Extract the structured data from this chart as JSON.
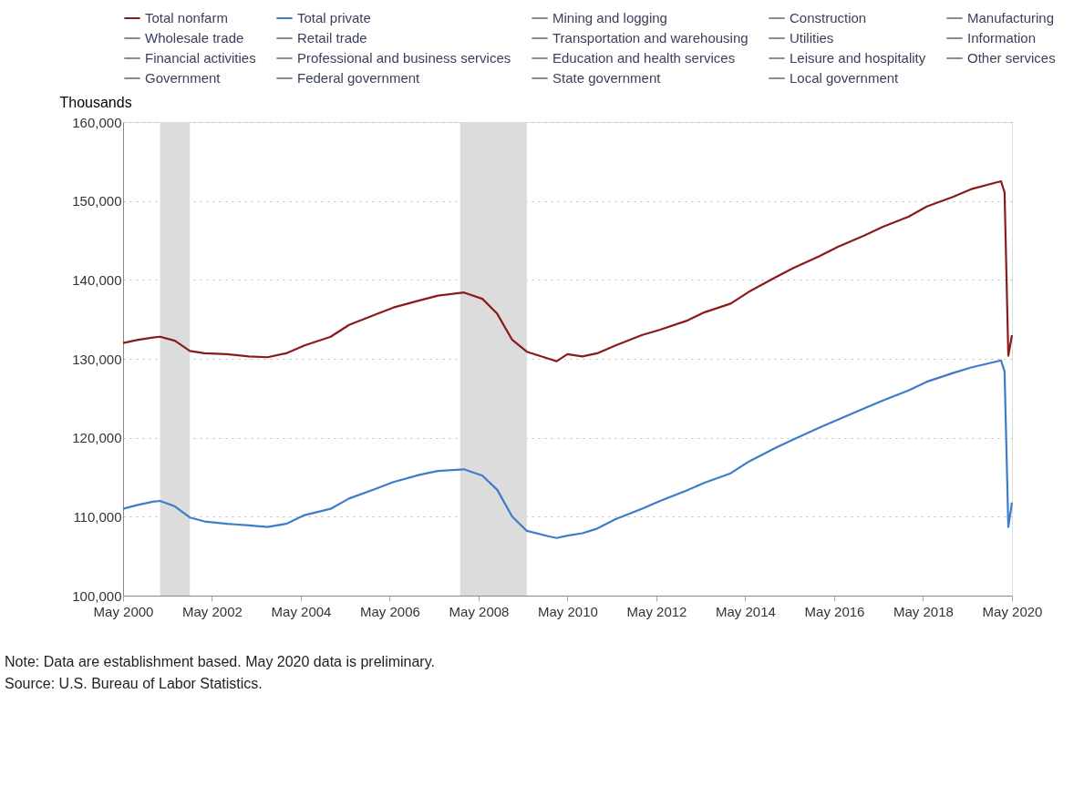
{
  "chart_data": {
    "type": "line",
    "ylabel": "Thousands",
    "x": [
      "2000-05",
      "2000-09",
      "2001-01",
      "2001-03",
      "2001-07",
      "2001-11",
      "2002-03",
      "2002-09",
      "2003-03",
      "2003-08",
      "2004-01",
      "2004-06",
      "2005-01",
      "2005-06",
      "2006-01",
      "2006-06",
      "2007-01",
      "2007-06",
      "2008-01",
      "2008-06",
      "2008-10",
      "2009-02",
      "2009-06",
      "2009-12",
      "2010-02",
      "2010-05",
      "2010-09",
      "2011-01",
      "2011-06",
      "2012-01",
      "2012-06",
      "2013-01",
      "2013-06",
      "2014-01",
      "2014-06",
      "2015-01",
      "2015-06",
      "2016-01",
      "2016-06",
      "2017-01",
      "2017-06",
      "2018-01",
      "2018-06",
      "2019-01",
      "2019-06",
      "2020-02",
      "2020-03",
      "2020-04",
      "2020-05"
    ],
    "series": [
      {
        "name": "Total nonfarm",
        "color": "#8b1a1a",
        "values": [
          132000,
          132400,
          132700,
          132800,
          132300,
          131000,
          130700,
          130600,
          130300,
          130200,
          130700,
          131700,
          132800,
          134300,
          135600,
          136500,
          137400,
          138000,
          138400,
          137600,
          135700,
          132400,
          130900,
          130000,
          129700,
          130600,
          130300,
          130700,
          131700,
          133000,
          133700,
          134800,
          135900,
          137000,
          138500,
          140300,
          141500,
          143000,
          144200,
          145600,
          146700,
          148000,
          149300,
          150500,
          151500,
          152500,
          151100,
          130400,
          133000
        ]
      },
      {
        "name": "Total private",
        "color": "#3d7cc9",
        "values": [
          111000,
          111500,
          111900,
          112000,
          111300,
          109900,
          109400,
          109100,
          108900,
          108700,
          109100,
          110200,
          111000,
          112300,
          113500,
          114400,
          115300,
          115800,
          116000,
          115200,
          113400,
          110000,
          108200,
          107500,
          107300,
          107600,
          107900,
          108500,
          109700,
          111000,
          112000,
          113300,
          114300,
          115500,
          117000,
          118700,
          119800,
          121300,
          122300,
          123700,
          124700,
          126000,
          127100,
          128200,
          128900,
          129800,
          128400,
          108700,
          111800
        ]
      },
      {
        "name": "Mining and logging",
        "color": "#8c8c8c",
        "values": [
          null,
          null,
          null,
          null,
          null,
          null,
          null,
          null,
          null,
          null,
          null,
          null,
          null,
          null,
          null,
          null,
          null,
          null,
          null,
          null,
          null,
          null,
          null,
          null,
          null,
          null,
          null,
          null,
          null,
          null,
          null,
          null,
          null,
          null,
          null,
          null,
          null,
          null,
          null,
          null,
          null,
          null,
          null,
          null,
          null,
          null,
          null,
          null,
          null
        ]
      },
      {
        "name": "Construction",
        "color": "#8c8c8c",
        "values": [
          null,
          null,
          null,
          null,
          null,
          null,
          null,
          null,
          null,
          null,
          null,
          null,
          null,
          null,
          null,
          null,
          null,
          null,
          null,
          null,
          null,
          null,
          null,
          null,
          null,
          null,
          null,
          null,
          null,
          null,
          null,
          null,
          null,
          null,
          null,
          null,
          null,
          null,
          null,
          null,
          null,
          null,
          null,
          null,
          null,
          null,
          null,
          null,
          null
        ]
      },
      {
        "name": "Manufacturing",
        "color": "#8c8c8c",
        "values": [
          null,
          null,
          null,
          null,
          null,
          null,
          null,
          null,
          null,
          null,
          null,
          null,
          null,
          null,
          null,
          null,
          null,
          null,
          null,
          null,
          null,
          null,
          null,
          null,
          null,
          null,
          null,
          null,
          null,
          null,
          null,
          null,
          null,
          null,
          null,
          null,
          null,
          null,
          null,
          null,
          null,
          null,
          null,
          null,
          null,
          null,
          null,
          null,
          null
        ]
      },
      {
        "name": "Wholesale trade",
        "color": "#8c8c8c",
        "values": [
          null,
          null,
          null,
          null,
          null,
          null,
          null,
          null,
          null,
          null,
          null,
          null,
          null,
          null,
          null,
          null,
          null,
          null,
          null,
          null,
          null,
          null,
          null,
          null,
          null,
          null,
          null,
          null,
          null,
          null,
          null,
          null,
          null,
          null,
          null,
          null,
          null,
          null,
          null,
          null,
          null,
          null,
          null,
          null,
          null,
          null,
          null,
          null,
          null
        ]
      },
      {
        "name": "Retail trade",
        "color": "#8c8c8c",
        "values": [
          null,
          null,
          null,
          null,
          null,
          null,
          null,
          null,
          null,
          null,
          null,
          null,
          null,
          null,
          null,
          null,
          null,
          null,
          null,
          null,
          null,
          null,
          null,
          null,
          null,
          null,
          null,
          null,
          null,
          null,
          null,
          null,
          null,
          null,
          null,
          null,
          null,
          null,
          null,
          null,
          null,
          null,
          null,
          null,
          null,
          null,
          null,
          null,
          null
        ]
      },
      {
        "name": "Transportation and warehousing",
        "color": "#8c8c8c",
        "values": [
          null,
          null,
          null,
          null,
          null,
          null,
          null,
          null,
          null,
          null,
          null,
          null,
          null,
          null,
          null,
          null,
          null,
          null,
          null,
          null,
          null,
          null,
          null,
          null,
          null,
          null,
          null,
          null,
          null,
          null,
          null,
          null,
          null,
          null,
          null,
          null,
          null,
          null,
          null,
          null,
          null,
          null,
          null,
          null,
          null,
          null,
          null,
          null,
          null
        ]
      },
      {
        "name": "Utilities",
        "color": "#8c8c8c",
        "values": [
          null,
          null,
          null,
          null,
          null,
          null,
          null,
          null,
          null,
          null,
          null,
          null,
          null,
          null,
          null,
          null,
          null,
          null,
          null,
          null,
          null,
          null,
          null,
          null,
          null,
          null,
          null,
          null,
          null,
          null,
          null,
          null,
          null,
          null,
          null,
          null,
          null,
          null,
          null,
          null,
          null,
          null,
          null,
          null,
          null,
          null,
          null,
          null,
          null
        ]
      },
      {
        "name": "Information",
        "color": "#8c8c8c",
        "values": [
          null,
          null,
          null,
          null,
          null,
          null,
          null,
          null,
          null,
          null,
          null,
          null,
          null,
          null,
          null,
          null,
          null,
          null,
          null,
          null,
          null,
          null,
          null,
          null,
          null,
          null,
          null,
          null,
          null,
          null,
          null,
          null,
          null,
          null,
          null,
          null,
          null,
          null,
          null,
          null,
          null,
          null,
          null,
          null,
          null,
          null,
          null,
          null,
          null
        ]
      },
      {
        "name": "Financial activities",
        "color": "#8c8c8c",
        "values": [
          null,
          null,
          null,
          null,
          null,
          null,
          null,
          null,
          null,
          null,
          null,
          null,
          null,
          null,
          null,
          null,
          null,
          null,
          null,
          null,
          null,
          null,
          null,
          null,
          null,
          null,
          null,
          null,
          null,
          null,
          null,
          null,
          null,
          null,
          null,
          null,
          null,
          null,
          null,
          null,
          null,
          null,
          null,
          null,
          null,
          null,
          null,
          null,
          null
        ]
      },
      {
        "name": "Professional and business services",
        "color": "#8c8c8c",
        "values": [
          null,
          null,
          null,
          null,
          null,
          null,
          null,
          null,
          null,
          null,
          null,
          null,
          null,
          null,
          null,
          null,
          null,
          null,
          null,
          null,
          null,
          null,
          null,
          null,
          null,
          null,
          null,
          null,
          null,
          null,
          null,
          null,
          null,
          null,
          null,
          null,
          null,
          null,
          null,
          null,
          null,
          null,
          null,
          null,
          null,
          null,
          null,
          null,
          null
        ]
      },
      {
        "name": "Education and health services",
        "color": "#8c8c8c",
        "values": [
          null,
          null,
          null,
          null,
          null,
          null,
          null,
          null,
          null,
          null,
          null,
          null,
          null,
          null,
          null,
          null,
          null,
          null,
          null,
          null,
          null,
          null,
          null,
          null,
          null,
          null,
          null,
          null,
          null,
          null,
          null,
          null,
          null,
          null,
          null,
          null,
          null,
          null,
          null,
          null,
          null,
          null,
          null,
          null,
          null,
          null,
          null,
          null,
          null
        ]
      },
      {
        "name": "Leisure and hospitality",
        "color": "#8c8c8c",
        "values": [
          null,
          null,
          null,
          null,
          null,
          null,
          null,
          null,
          null,
          null,
          null,
          null,
          null,
          null,
          null,
          null,
          null,
          null,
          null,
          null,
          null,
          null,
          null,
          null,
          null,
          null,
          null,
          null,
          null,
          null,
          null,
          null,
          null,
          null,
          null,
          null,
          null,
          null,
          null,
          null,
          null,
          null,
          null,
          null,
          null,
          null,
          null,
          null,
          null
        ]
      },
      {
        "name": "Other services",
        "color": "#8c8c8c",
        "values": [
          null,
          null,
          null,
          null,
          null,
          null,
          null,
          null,
          null,
          null,
          null,
          null,
          null,
          null,
          null,
          null,
          null,
          null,
          null,
          null,
          null,
          null,
          null,
          null,
          null,
          null,
          null,
          null,
          null,
          null,
          null,
          null,
          null,
          null,
          null,
          null,
          null,
          null,
          null,
          null,
          null,
          null,
          null,
          null,
          null,
          null,
          null,
          null,
          null
        ]
      },
      {
        "name": "Government",
        "color": "#8c8c8c",
        "values": [
          null,
          null,
          null,
          null,
          null,
          null,
          null,
          null,
          null,
          null,
          null,
          null,
          null,
          null,
          null,
          null,
          null,
          null,
          null,
          null,
          null,
          null,
          null,
          null,
          null,
          null,
          null,
          null,
          null,
          null,
          null,
          null,
          null,
          null,
          null,
          null,
          null,
          null,
          null,
          null,
          null,
          null,
          null,
          null,
          null,
          null,
          null,
          null,
          null
        ]
      },
      {
        "name": "Federal government",
        "color": "#8c8c8c",
        "values": [
          null,
          null,
          null,
          null,
          null,
          null,
          null,
          null,
          null,
          null,
          null,
          null,
          null,
          null,
          null,
          null,
          null,
          null,
          null,
          null,
          null,
          null,
          null,
          null,
          null,
          null,
          null,
          null,
          null,
          null,
          null,
          null,
          null,
          null,
          null,
          null,
          null,
          null,
          null,
          null,
          null,
          null,
          null,
          null,
          null,
          null,
          null,
          null,
          null
        ]
      },
      {
        "name": "State government",
        "color": "#8c8c8c",
        "values": [
          null,
          null,
          null,
          null,
          null,
          null,
          null,
          null,
          null,
          null,
          null,
          null,
          null,
          null,
          null,
          null,
          null,
          null,
          null,
          null,
          null,
          null,
          null,
          null,
          null,
          null,
          null,
          null,
          null,
          null,
          null,
          null,
          null,
          null,
          null,
          null,
          null,
          null,
          null,
          null,
          null,
          null,
          null,
          null,
          null,
          null,
          null,
          null,
          null
        ]
      },
      {
        "name": "Local government",
        "color": "#8c8c8c",
        "values": [
          null,
          null,
          null,
          null,
          null,
          null,
          null,
          null,
          null,
          null,
          null,
          null,
          null,
          null,
          null,
          null,
          null,
          null,
          null,
          null,
          null,
          null,
          null,
          null,
          null,
          null,
          null,
          null,
          null,
          null,
          null,
          null,
          null,
          null,
          null,
          null,
          null,
          null,
          null,
          null,
          null,
          null,
          null,
          null,
          null,
          null,
          null,
          null,
          null
        ]
      }
    ],
    "xlim": [
      "2000-05",
      "2020-05"
    ],
    "xticks": [
      {
        "value": "2000-05",
        "label": "May 2000"
      },
      {
        "value": "2002-05",
        "label": "May 2002"
      },
      {
        "value": "2004-05",
        "label": "May 2004"
      },
      {
        "value": "2006-05",
        "label": "May 2006"
      },
      {
        "value": "2008-05",
        "label": "May 2008"
      },
      {
        "value": "2010-05",
        "label": "May 2010"
      },
      {
        "value": "2012-05",
        "label": "May 2012"
      },
      {
        "value": "2014-05",
        "label": "May 2014"
      },
      {
        "value": "2016-05",
        "label": "May 2016"
      },
      {
        "value": "2018-05",
        "label": "May 2018"
      },
      {
        "value": "2020-05",
        "label": "May 2020"
      }
    ],
    "ylim": [
      100000,
      160000
    ],
    "yticks": [
      {
        "value": 100000,
        "label": "100,000"
      },
      {
        "value": 110000,
        "label": "110,000"
      },
      {
        "value": 120000,
        "label": "120,000"
      },
      {
        "value": 130000,
        "label": "130,000"
      },
      {
        "value": 140000,
        "label": "140,000"
      },
      {
        "value": 150000,
        "label": "150,000"
      },
      {
        "value": 160000,
        "label": "160,000"
      }
    ],
    "bands": [
      {
        "axis": "x",
        "from": "2001-03",
        "to": "2001-11",
        "color": "#dcdcdd"
      },
      {
        "axis": "x",
        "from": "2007-12",
        "to": "2009-06",
        "color": "#dcdcdd"
      }
    ],
    "grid": "y",
    "legend": "top",
    "line_style": "solid",
    "marker": "none",
    "annotations": [
      "Note:  Data are establishment based. May 2020 data is preliminary.",
      "Source:  U.S. Bureau of Labor Statistics."
    ]
  }
}
